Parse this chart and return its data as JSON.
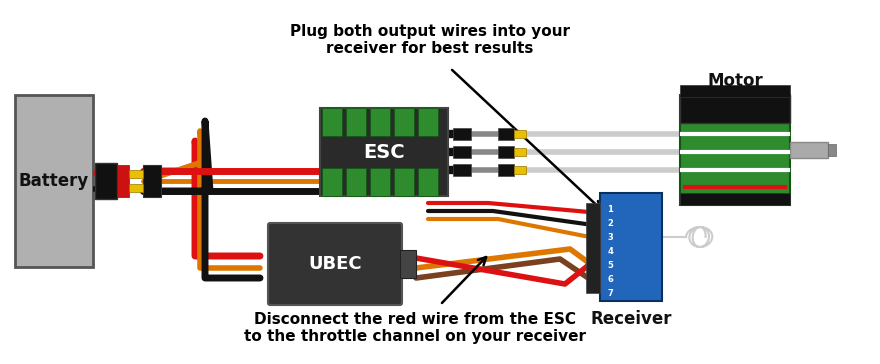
{
  "bg_color": "#ffffff",
  "text_top": "Plug both output wires into your\nreceiver for best results",
  "text_bottom": "Disconnect the red wire from the ESC\nto the throttle channel on your receiver",
  "label_battery": "Battery",
  "label_esc": "ESC",
  "label_ubec": "UBEC",
  "label_motor": "Motor",
  "label_receiver": "Receiver",
  "battery_color": "#b0b0b0",
  "battery_border": "#555555",
  "esc_body_color": "#2a2a2a",
  "esc_green_color": "#2e8b2e",
  "ubec_body_color": "#333333",
  "motor_green_color": "#2e8b2e",
  "motor_body_color": "#111111",
  "receiver_color": "#2266bb",
  "connector_yellow": "#e8c000",
  "wire_red": "#dd1111",
  "wire_black": "#111111",
  "wire_orange": "#dd7700",
  "wire_brown": "#7a4020",
  "wire_white": "#cccccc",
  "wire_gray": "#888888",
  "text_color": "#000000"
}
